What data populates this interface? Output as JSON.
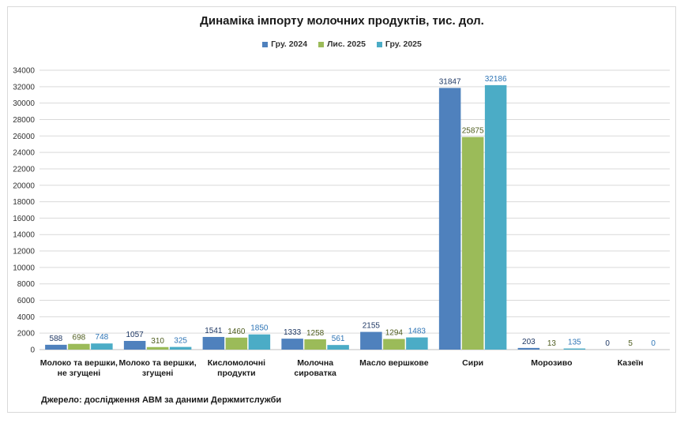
{
  "chart_data": {
    "type": "bar",
    "title": "Динаміка імпорту молочних продуктів, тис. дол.",
    "categories": [
      [
        "Молоко та вершки,",
        "не згущені"
      ],
      [
        "Молоко та вершки,",
        "згущені"
      ],
      [
        "Кисломолочні",
        "продукти"
      ],
      [
        "Молочна",
        "сироватка"
      ],
      [
        "Масло вершкове"
      ],
      [
        "Сири"
      ],
      [
        "Морозиво"
      ],
      [
        "Казеїн"
      ]
    ],
    "series": [
      {
        "name": "Гру. 2024",
        "color": "#4f81bd",
        "label_color": "#1f3864",
        "values": [
          588,
          1057,
          1541,
          1333,
          2155,
          31847,
          203,
          0
        ]
      },
      {
        "name": "Лис. 2025",
        "color": "#9bbb59",
        "label_color": "#4f5d1f",
        "values": [
          698,
          310,
          1460,
          1258,
          1294,
          25875,
          13,
          5
        ]
      },
      {
        "name": "Гру. 2025",
        "color": "#4bacc6",
        "label_color": "#2e75b6",
        "values": [
          748,
          325,
          1850,
          561,
          1483,
          32186,
          135,
          0
        ]
      }
    ],
    "ylim": [
      0,
      34000
    ],
    "ytick_step": 2000,
    "grid": true,
    "legend_position": "top-center",
    "source": "Джерело: дослідження АВМ за даними Держмитслужби"
  }
}
